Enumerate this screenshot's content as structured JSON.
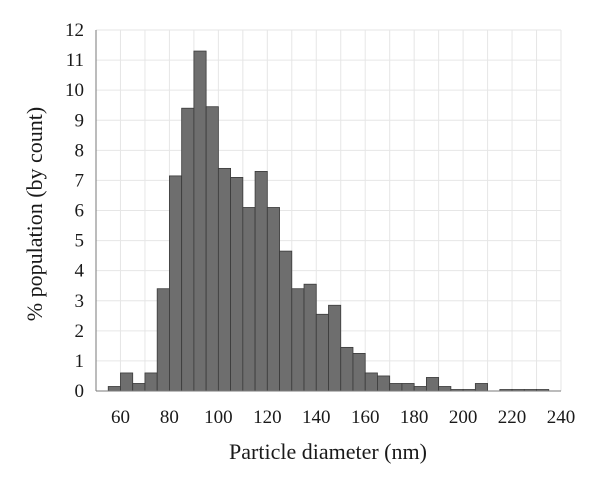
{
  "chart_data": {
    "type": "bar",
    "title": "",
    "xlabel": "Particle diameter (nm)",
    "ylabel": "% population (by count)",
    "bin_width": 5,
    "bins": [
      {
        "x_start": 55,
        "value": 0.15
      },
      {
        "x_start": 60,
        "value": 0.6
      },
      {
        "x_start": 65,
        "value": 0.25
      },
      {
        "x_start": 70,
        "value": 0.6
      },
      {
        "x_start": 75,
        "value": 3.4
      },
      {
        "x_start": 80,
        "value": 7.15
      },
      {
        "x_start": 85,
        "value": 9.4
      },
      {
        "x_start": 90,
        "value": 11.3
      },
      {
        "x_start": 95,
        "value": 9.45
      },
      {
        "x_start": 100,
        "value": 7.4
      },
      {
        "x_start": 105,
        "value": 7.1
      },
      {
        "x_start": 110,
        "value": 6.1
      },
      {
        "x_start": 115,
        "value": 7.3
      },
      {
        "x_start": 120,
        "value": 6.1
      },
      {
        "x_start": 125,
        "value": 4.65
      },
      {
        "x_start": 130,
        "value": 3.4
      },
      {
        "x_start": 135,
        "value": 3.55
      },
      {
        "x_start": 140,
        "value": 2.55
      },
      {
        "x_start": 145,
        "value": 2.85
      },
      {
        "x_start": 150,
        "value": 1.45
      },
      {
        "x_start": 155,
        "value": 1.25
      },
      {
        "x_start": 160,
        "value": 0.6
      },
      {
        "x_start": 165,
        "value": 0.5
      },
      {
        "x_start": 170,
        "value": 0.25
      },
      {
        "x_start": 175,
        "value": 0.25
      },
      {
        "x_start": 180,
        "value": 0.15
      },
      {
        "x_start": 185,
        "value": 0.45
      },
      {
        "x_start": 190,
        "value": 0.15
      },
      {
        "x_start": 195,
        "value": 0.05
      },
      {
        "x_start": 200,
        "value": 0.05
      },
      {
        "x_start": 205,
        "value": 0.25
      },
      {
        "x_start": 210,
        "value": 0.0
      },
      {
        "x_start": 215,
        "value": 0.05
      },
      {
        "x_start": 220,
        "value": 0.05
      },
      {
        "x_start": 225,
        "value": 0.05
      },
      {
        "x_start": 230,
        "value": 0.05
      }
    ],
    "xlim": [
      50,
      240
    ],
    "ylim": [
      0,
      12
    ],
    "x_ticks": [
      60,
      80,
      100,
      120,
      140,
      160,
      180,
      200,
      220,
      240
    ],
    "x_tick_labels": [
      "60",
      "80",
      "100",
      "120",
      "140",
      "160",
      "180",
      "200",
      "220",
      "240"
    ],
    "y_ticks": [
      0,
      1,
      2,
      3,
      4,
      5,
      6,
      7,
      8,
      9,
      10,
      11,
      12
    ],
    "y_tick_labels": [
      "0",
      "1",
      "2",
      "3",
      "4",
      "5",
      "6",
      "7",
      "8",
      "9",
      "10",
      "11",
      "12"
    ],
    "grid": true,
    "colors": {
      "bar_fill": "#6e6e6e",
      "bar_stroke": "#3a3a3a",
      "grid": "#e6e6e6"
    }
  }
}
